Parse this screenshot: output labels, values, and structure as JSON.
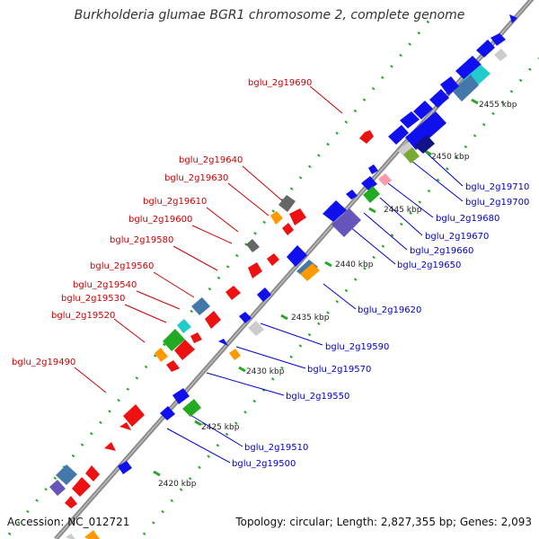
{
  "title": "Burkholderia glumae BGR1 chromosome 2, complete genome",
  "footer": {
    "accession": "Accession: NC_012721",
    "summary": "Topology: circular; Length: 2,827,355 bp; Genes: 2,093"
  },
  "colors": {
    "backbone": "#8a8a8a",
    "tick": "#22aa22",
    "label_left": "#cc0000",
    "label_right": "#0000cc",
    "blue": "#1010ee",
    "red": "#ee1111",
    "green": "#22aa22",
    "orange": "#ff9900",
    "gray": "#777777",
    "light_gray": "#cccccc",
    "cyan": "#22cccc",
    "steel": "#4477aa",
    "navy": "#111188",
    "purple": "#6655bb",
    "olive": "#77aa33",
    "pink": "#ff99aa"
  },
  "scale_labels": [
    "2420 kbp",
    "2425 kbp",
    "2430 kbp",
    "2435 kbp",
    "2440 kbp",
    "2445 kbp",
    "2450 kbp",
    "2455 kbp"
  ],
  "labels_left": [
    "bglu_2g19690",
    "bglu_2g19640",
    "bglu_2g19630",
    "bglu_2g19610",
    "bglu_2g19600",
    "bglu_2g19580",
    "bglu_2g19560",
    "bglu_2g19540",
    "bglu_2g19530",
    "bglu_2g19520",
    "bglu_2g19490"
  ],
  "labels_right": [
    "bglu_2g19710",
    "bglu_2g19700",
    "bglu_2g19680",
    "bglu_2g19670",
    "bglu_2g19660",
    "bglu_2g19650",
    "bglu_2g19620",
    "bglu_2g19590",
    "bglu_2g19570",
    "bglu_2g19550",
    "bglu_2g19510",
    "bglu_2g19500"
  ]
}
